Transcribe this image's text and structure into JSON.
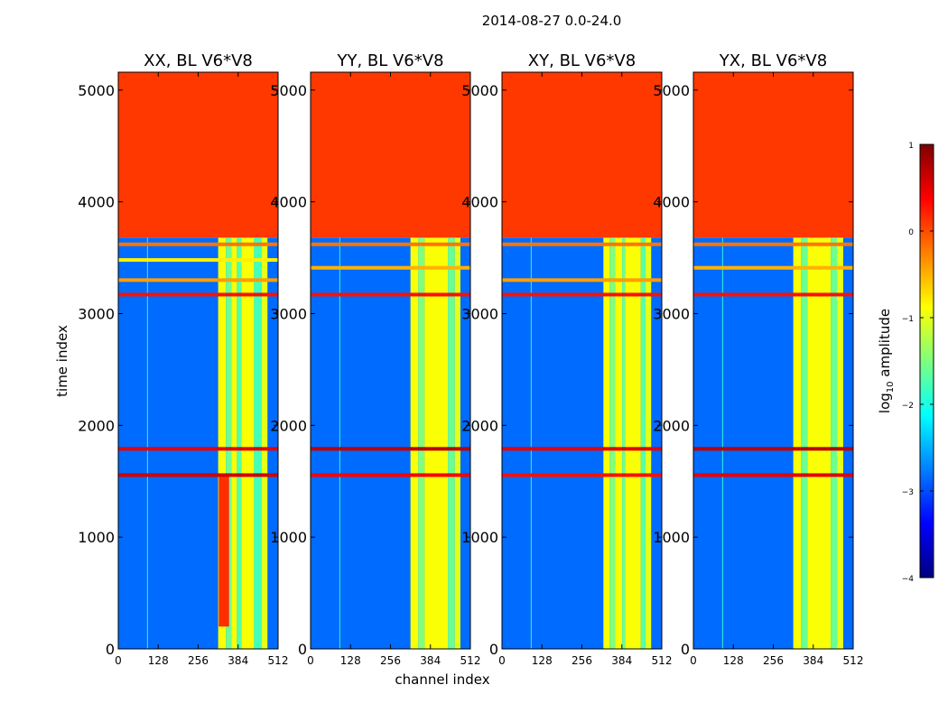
{
  "chart_data": {
    "type": "heatmap",
    "suptitle": "2014-08-27 0.0-24.0",
    "xlabel": "channel index",
    "ylabel": "time index",
    "xlim": [
      0,
      512
    ],
    "ylim": [
      0,
      5160
    ],
    "x_ticks": [
      0,
      128,
      256,
      384,
      512
    ],
    "y_ticks": [
      0,
      1000,
      2000,
      3000,
      4000,
      5000
    ],
    "data_end_time_index": 3680,
    "fill_value_log10": 0.1,
    "background_log10": -2.85,
    "colorbar": {
      "label": "log10 amplitude",
      "label_main": "log",
      "label_sub": "10",
      "label_rest": " amplitude",
      "vmin": -4,
      "vmax": 1,
      "ticks": [
        1,
        0,
        -1,
        -2,
        -3,
        -4
      ],
      "tick_labels": [
        "1",
        "0",
        "−1",
        "−2",
        "−3",
        "−4"
      ],
      "colormap": "jet",
      "stops": [
        "#00007f",
        "#0000ff",
        "#007fff",
        "#00ffff",
        "#7fff7f",
        "#ffff00",
        "#ff7f00",
        "#ff0000",
        "#7f0000"
      ]
    },
    "panels": [
      {
        "title": "XX, BL V6*V8",
        "bands": [
          {
            "ch_start": 320,
            "ch_end": 345,
            "log10": -0.9
          },
          {
            "ch_start": 345,
            "ch_end": 362,
            "log10": -1.6
          },
          {
            "ch_start": 362,
            "ch_end": 380,
            "log10": -0.9
          },
          {
            "ch_start": 380,
            "ch_end": 395,
            "log10": -1.7
          },
          {
            "ch_start": 395,
            "ch_end": 435,
            "log10": -0.9
          },
          {
            "ch_start": 435,
            "ch_end": 460,
            "log10": -1.8
          },
          {
            "ch_start": 460,
            "ch_end": 478,
            "log10": -1.0
          }
        ],
        "bright_block": {
          "ch_start": 322,
          "ch_end": 355,
          "t_start": 200,
          "t_end": 1550,
          "log10": 0.15
        },
        "rfi_rows": [
          {
            "t": 1555,
            "log10": 0.6
          },
          {
            "t": 1790,
            "log10": 0.5
          },
          {
            "t": 3170,
            "log10": 0.3
          },
          {
            "t": 3300,
            "log10": -0.4
          },
          {
            "t": 3480,
            "log10": -0.8
          },
          {
            "t": 3620,
            "log10": -0.2
          }
        ]
      },
      {
        "title": "YY, BL V6*V8",
        "bands": [
          {
            "ch_start": 320,
            "ch_end": 345,
            "log10": -0.9
          },
          {
            "ch_start": 345,
            "ch_end": 365,
            "log10": -1.5
          },
          {
            "ch_start": 365,
            "ch_end": 440,
            "log10": -0.9
          },
          {
            "ch_start": 440,
            "ch_end": 462,
            "log10": -1.6
          },
          {
            "ch_start": 462,
            "ch_end": 480,
            "log10": -1.0
          }
        ],
        "bright_block": null,
        "rfi_rows": [
          {
            "t": 1555,
            "log10": 0.4
          },
          {
            "t": 1790,
            "log10": 0.7
          },
          {
            "t": 3170,
            "log10": 0.3
          },
          {
            "t": 3410,
            "log10": -0.5
          },
          {
            "t": 3620,
            "log10": -0.2
          }
        ]
      },
      {
        "title": "XY, BL V6*V8",
        "bands": [
          {
            "ch_start": 325,
            "ch_end": 345,
            "log10": -0.9
          },
          {
            "ch_start": 345,
            "ch_end": 362,
            "log10": -1.5
          },
          {
            "ch_start": 362,
            "ch_end": 385,
            "log10": -0.9
          },
          {
            "ch_start": 385,
            "ch_end": 395,
            "log10": -1.6
          },
          {
            "ch_start": 395,
            "ch_end": 445,
            "log10": -0.9
          },
          {
            "ch_start": 445,
            "ch_end": 460,
            "log10": -1.7
          },
          {
            "ch_start": 460,
            "ch_end": 478,
            "log10": -1.0
          }
        ],
        "bright_block": null,
        "rfi_rows": [
          {
            "t": 1555,
            "log10": 0.3
          },
          {
            "t": 1790,
            "log10": 0.5
          },
          {
            "t": 3170,
            "log10": 0.3
          },
          {
            "t": 3300,
            "log10": -0.4
          },
          {
            "t": 3620,
            "log10": -0.2
          }
        ]
      },
      {
        "title": "YX, BL V6*V8",
        "bands": [
          {
            "ch_start": 320,
            "ch_end": 345,
            "log10": -0.9
          },
          {
            "ch_start": 345,
            "ch_end": 365,
            "log10": -1.6
          },
          {
            "ch_start": 365,
            "ch_end": 440,
            "log10": -0.9
          },
          {
            "ch_start": 440,
            "ch_end": 460,
            "log10": -1.6
          },
          {
            "ch_start": 460,
            "ch_end": 480,
            "log10": -1.0
          }
        ],
        "bright_block": null,
        "rfi_rows": [
          {
            "t": 1555,
            "log10": 0.5
          },
          {
            "t": 1790,
            "log10": 0.7
          },
          {
            "t": 3170,
            "log10": 0.3
          },
          {
            "t": 3410,
            "log10": -0.5
          },
          {
            "t": 3620,
            "log10": -0.2
          }
        ]
      }
    ]
  }
}
